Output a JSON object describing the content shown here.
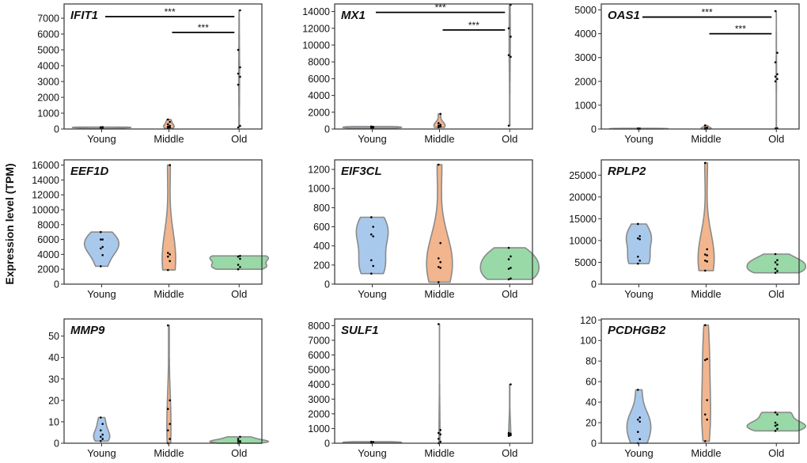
{
  "chart_data": {
    "type": "violin",
    "ylabel": "Expression level (TPM)",
    "categories": [
      "Young",
      "Middle",
      "Old"
    ],
    "colors": {
      "Young": "#a9c9ec",
      "Middle": "#f2b58d",
      "Old": "#98d9a7",
      "outline": "#8a8a8a",
      "points": "#000000"
    },
    "panels": [
      {
        "gene": "IFIT1",
        "ylim": [
          0,
          7900
        ],
        "yticks": [
          0,
          1000,
          2000,
          3000,
          4000,
          5000,
          6000,
          7000
        ],
        "groups": {
          "Young": [
            30,
            60,
            80,
            100,
            110,
            120
          ],
          "Middle": [
            50,
            100,
            150,
            200,
            300,
            450,
            600
          ],
          "Old": [
            100,
            200,
            2800,
            3300,
            3500,
            3900,
            5000,
            7500
          ]
        },
        "significance": [
          {
            "from": "Young",
            "to": "Old",
            "y": 7100,
            "label": "***"
          },
          {
            "from": "Middle",
            "to": "Old",
            "y": 6100,
            "label": "***"
          }
        ]
      },
      {
        "gene": "MX1",
        "ylim": [
          0,
          14900
        ],
        "yticks": [
          0,
          2000,
          4000,
          6000,
          8000,
          10000,
          12000,
          14000
        ],
        "groups": {
          "Young": [
            100,
            150,
            200,
            250,
            300
          ],
          "Middle": [
            200,
            300,
            400,
            500,
            700,
            1800
          ],
          "Old": [
            400,
            8600,
            8800,
            11000,
            12000,
            14800
          ]
        },
        "significance": [
          {
            "from": "Young",
            "to": "Old",
            "y": 13900,
            "label": "***"
          },
          {
            "from": "Middle",
            "to": "Old",
            "y": 11800,
            "label": "***"
          }
        ]
      },
      {
        "gene": "OAS1",
        "ylim": [
          0,
          5250
        ],
        "yticks": [
          0,
          1000,
          2000,
          3000,
          4000,
          5000
        ],
        "groups": {
          "Young": [
            5,
            10,
            15,
            20,
            25
          ],
          "Middle": [
            0,
            20,
            40,
            60,
            150
          ],
          "Old": [
            20,
            30,
            2000,
            2100,
            2200,
            2300,
            2800,
            3200,
            4950
          ]
        },
        "significance": [
          {
            "from": "Young",
            "to": "Old",
            "y": 4700,
            "label": "***"
          },
          {
            "from": "Middle",
            "to": "Old",
            "y": 4000,
            "label": "***"
          }
        ]
      },
      {
        "gene": "EEF1D",
        "ylim": [
          0,
          16700
        ],
        "yticks": [
          0,
          2000,
          4000,
          6000,
          8000,
          10000,
          12000,
          14000,
          16000
        ],
        "groups": {
          "Young": [
            2400,
            3900,
            4800,
            5000,
            6000,
            6000,
            7000
          ],
          "Middle": [
            1900,
            3100,
            3700,
            4000,
            4200,
            16000
          ],
          "Old": [
            2000,
            2300,
            2600,
            3400,
            3700,
            3800
          ]
        },
        "significance": []
      },
      {
        "gene": "EIF3CL",
        "ylim": [
          0,
          1300
        ],
        "yticks": [
          0,
          200,
          400,
          600,
          800,
          1000,
          1200
        ],
        "groups": {
          "Young": [
            110,
            190,
            250,
            500,
            520,
            600,
            700
          ],
          "Middle": [
            20,
            170,
            180,
            230,
            270,
            430,
            1250
          ],
          "Old": [
            50,
            60,
            160,
            170,
            260,
            290,
            380
          ]
        },
        "significance": []
      },
      {
        "gene": "RPLP2",
        "ylim": [
          0,
          28500
        ],
        "yticks": [
          0,
          5000,
          10000,
          15000,
          20000,
          25000
        ],
        "groups": {
          "Young": [
            4700,
            5400,
            6300,
            10300,
            10500,
            11000,
            13800
          ],
          "Middle": [
            3100,
            5200,
            5400,
            6600,
            6800,
            8000,
            27800
          ],
          "Old": [
            2600,
            3000,
            3500,
            4500,
            5000,
            5500,
            6900
          ]
        },
        "significance": []
      },
      {
        "gene": "MMP9",
        "ylim": [
          0,
          58
        ],
        "yticks": [
          0,
          10,
          20,
          30,
          40,
          50
        ],
        "groups": {
          "Young": [
            1,
            2,
            3,
            4,
            6,
            9,
            12
          ],
          "Middle": [
            0,
            2,
            6,
            9,
            16,
            20,
            55
          ],
          "Old": [
            0,
            0.5,
            1,
            1,
            2,
            3
          ]
        },
        "significance": []
      },
      {
        "gene": "SULF1",
        "ylim": [
          0,
          8450
        ],
        "yticks": [
          0,
          1000,
          2000,
          3000,
          4000,
          5000,
          6000,
          7000,
          8000
        ],
        "groups": {
          "Young": [
            20,
            40,
            60,
            80,
            100
          ],
          "Middle": [
            0,
            100,
            300,
            600,
            700,
            900,
            8100
          ],
          "Old": [
            500,
            550,
            600,
            650,
            700,
            4000
          ]
        },
        "significance": []
      },
      {
        "gene": "PCDHGB2",
        "ylim": [
          0,
          121
        ],
        "yticks": [
          0,
          20,
          40,
          60,
          80,
          100,
          120
        ],
        "groups": {
          "Young": [
            0,
            4,
            11,
            21,
            23,
            25,
            52
          ],
          "Middle": [
            2,
            23,
            28,
            42,
            81,
            82,
            115
          ],
          "Old": [
            12,
            14,
            17,
            18,
            20,
            28,
            30
          ]
        },
        "significance": []
      }
    ]
  }
}
